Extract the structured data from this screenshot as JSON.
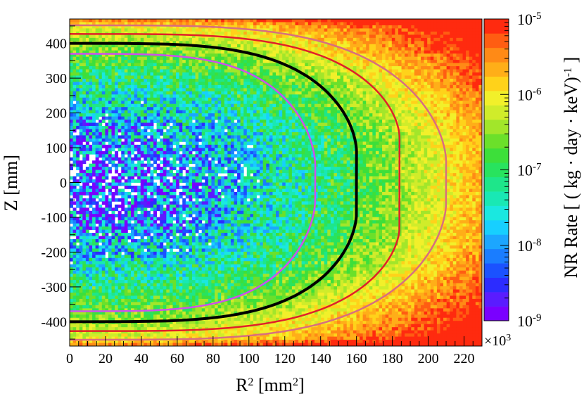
{
  "chart_data": {
    "type": "heatmap",
    "title": "",
    "xlabel": "R",
    "xlabel_sup": "2",
    "xlabel_unit": " [mm",
    "xlabel_unit_sup": "2",
    "xlabel_close": "]",
    "x_multiplier": "×10",
    "x_multiplier_sup": "3",
    "ylabel": "Z [mm]",
    "xlim": [
      0,
      230
    ],
    "ylim": [
      -470,
      470
    ],
    "x_ticks": [
      0,
      20,
      40,
      60,
      80,
      100,
      120,
      140,
      160,
      180,
      200,
      220
    ],
    "y_ticks": [
      -400,
      -300,
      -200,
      -100,
      0,
      100,
      200,
      300,
      400
    ],
    "colorbar": {
      "label": "NR Rate [ ( kg · day · keV)",
      "label_sup": "-1",
      "label_close": " ]",
      "scale": "log",
      "range": [
        1e-09,
        1e-05
      ],
      "ticks": [
        {
          "base": "10",
          "exp": "-9",
          "value": 1e-09
        },
        {
          "base": "10",
          "exp": "-8",
          "value": 1e-08
        },
        {
          "base": "10",
          "exp": "-7",
          "value": 1e-07
        },
        {
          "base": "10",
          "exp": "-6",
          "value": 1e-06
        },
        {
          "base": "10",
          "exp": "-5",
          "value": 1e-05
        }
      ],
      "colors": [
        "#7a00ff",
        "#5a1cff",
        "#2c2cff",
        "#1b52ff",
        "#1a7dff",
        "#1ca6ff",
        "#17cfff",
        "#1ae8e0",
        "#19e8b4",
        "#1ee68a",
        "#28e35e",
        "#3ddf3a",
        "#6be02a",
        "#a2e62a",
        "#d0ec2a",
        "#f2f02a",
        "#ffd21a",
        "#ffae18",
        "#ff8a16",
        "#ff5d12",
        "#ff2a0f"
      ]
    },
    "contours": [
      {
        "color": "#cf4fee",
        "width": 2.5,
        "r2_half_width": 137,
        "z_half_height": 370,
        "flat_z": 50
      },
      {
        "color": "#000000",
        "width": 4,
        "r2_half_width": 160,
        "z_half_height": 400,
        "flat_z": 90
      },
      {
        "color": "#e0202a",
        "width": 2.5,
        "r2_half_width": 184,
        "z_half_height": 427,
        "flat_z": 130
      },
      {
        "color": "#d86e80",
        "width": 2.5,
        "r2_half_width": 210,
        "z_half_height": 452,
        "flat_z": 60
      }
    ]
  }
}
